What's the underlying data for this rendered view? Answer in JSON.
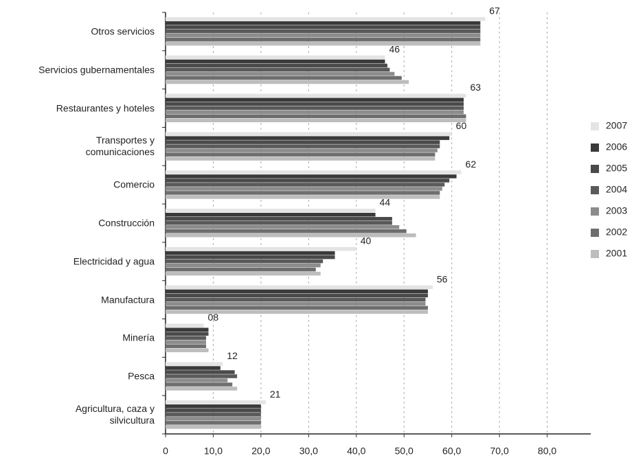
{
  "chart_data": {
    "type": "hbar",
    "categories": [
      "Otros servicios",
      "Servicios gubernamentales",
      "Restaurantes y hoteles",
      "Transportes y\ncomunicaciones",
      "Comercio",
      "Construcción",
      "Electricidad y agua",
      "Manufactura",
      "Minería",
      "Pesca",
      "Agricultura, caza y\nsilvicultura"
    ],
    "series": [
      {
        "name": "2007",
        "color": "#e4e4e4",
        "values": [
          67,
          46,
          63,
          60,
          62,
          44,
          40,
          56,
          8,
          12,
          21
        ],
        "value_labels": [
          "67",
          "46",
          "63",
          "60",
          "62",
          "44",
          "40",
          "56",
          "08",
          "12",
          "21"
        ]
      },
      {
        "name": "2006",
        "color": "#3a3a3a",
        "values": [
          66,
          46,
          62.5,
          59.5,
          61,
          44,
          35.5,
          55,
          9,
          11.5,
          20
        ]
      },
      {
        "name": "2005",
        "color": "#4a4a4a",
        "values": [
          66,
          46.5,
          62.5,
          57.5,
          59.5,
          47.5,
          35.5,
          55,
          9,
          14.5,
          20
        ]
      },
      {
        "name": "2004",
        "color": "#5a5a5a",
        "values": [
          66,
          47,
          62.5,
          57.5,
          58.5,
          47.5,
          33,
          54.5,
          8.5,
          15,
          20
        ]
      },
      {
        "name": "2003",
        "color": "#8c8c8c",
        "values": [
          66,
          48,
          62.5,
          57,
          58,
          49,
          32.5,
          54.5,
          8.5,
          13,
          20
        ]
      },
      {
        "name": "2002",
        "color": "#6e6e6e",
        "values": [
          66,
          49.5,
          63,
          56.5,
          57.5,
          50.5,
          31.5,
          55,
          8.5,
          14,
          20
        ]
      },
      {
        "name": "2001",
        "color": "#bdbdbd",
        "values": [
          66,
          51,
          63,
          56.5,
          57.5,
          52.5,
          32.5,
          55,
          9,
          15,
          20
        ]
      }
    ],
    "xlim": [
      0,
      90
    ],
    "xticks": [
      0,
      {
        "value": 10,
        "label": "10,0"
      },
      {
        "value": 20,
        "label": "20,0"
      },
      {
        "value": 30,
        "label": "30,0"
      },
      {
        "value": 40,
        "label": "40,0"
      },
      {
        "value": 50,
        "label": "50,0"
      },
      {
        "value": 60,
        "label": "60,0"
      },
      {
        "value": 70,
        "label": "70,0"
      },
      {
        "value": 80,
        "label": "80,0"
      }
    ],
    "grid": true,
    "legend": "right"
  }
}
